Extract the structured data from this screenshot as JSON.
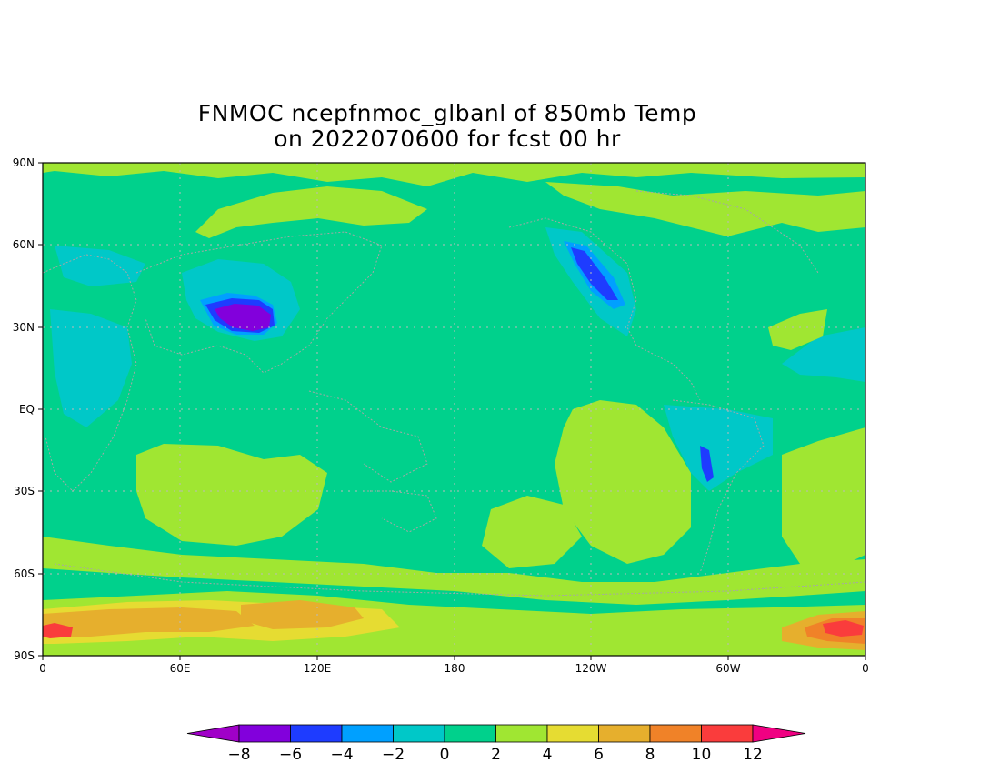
{
  "title": {
    "line1": "FNMOC ncepfnmoc_glbanl of 850mb Temp",
    "line2": "on 2022070600 for fcst 00 hr"
  },
  "map": {
    "lat_ticks": [
      "90N",
      "60N",
      "30N",
      "EQ",
      "30S",
      "60S",
      "90S"
    ],
    "lon_ticks": [
      "0",
      "60E",
      "120E",
      "180",
      "120W",
      "60W",
      "0"
    ],
    "colors": {
      "background_field": "#00d18c",
      "grid_dots": "#bbbbbb",
      "coastline": "#a6a6a6"
    }
  },
  "colorbar": {
    "labels": [
      "-8",
      "-6",
      "-4",
      "-2",
      "0",
      "2",
      "4",
      "6",
      "8",
      "10",
      "12"
    ],
    "colors": [
      "#8200dc",
      "#1e3cff",
      "#00a0ff",
      "#00c8c8",
      "#00d18c",
      "#a0e632",
      "#e6dc32",
      "#e6af2d",
      "#f08228",
      "#fa3c3c",
      "#f00082"
    ],
    "left_arrow_color": "#a000c8"
  }
}
